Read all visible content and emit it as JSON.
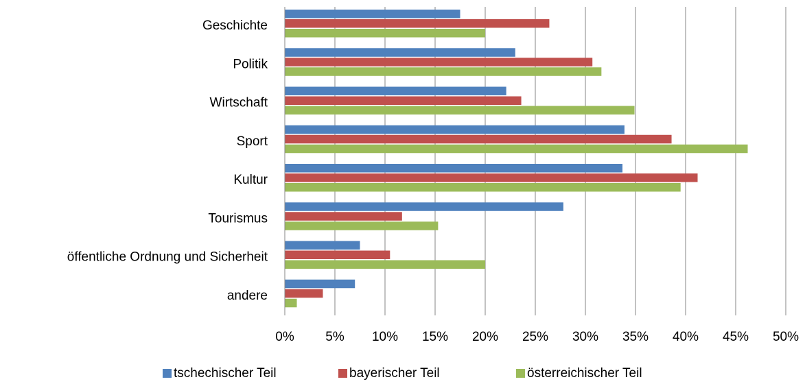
{
  "chart_data": {
    "type": "barh",
    "categories": [
      "Geschichte",
      "Politik",
      "Wirtschaft",
      "Sport",
      "Kultur",
      "Tourismus",
      "öffentliche Ordnung und Sicherheit",
      "andere"
    ],
    "series": [
      {
        "name": "tschechischer Teil",
        "color": "#4f81bd",
        "values": [
          17.5,
          23,
          22.1,
          33.9,
          33.7,
          27.8,
          7.5,
          7
        ]
      },
      {
        "name": "bayerischer Teil",
        "color": "#c0504d",
        "values": [
          26.4,
          30.7,
          23.6,
          38.6,
          41.2,
          11.7,
          10.5,
          3.8
        ]
      },
      {
        "name": "österreichischer Teil",
        "color": "#9bbb59",
        "values": [
          20,
          31.6,
          34.9,
          46.2,
          39.5,
          15.3,
          20,
          1.2
        ]
      }
    ],
    "xlim": [
      0,
      50
    ],
    "xticks": [
      {
        "value": 0,
        "label": "0%"
      },
      {
        "value": 5,
        "label": "5%"
      },
      {
        "value": 10,
        "label": "10%"
      },
      {
        "value": 15,
        "label": "15%"
      },
      {
        "value": 20,
        "label": "20%"
      },
      {
        "value": 25,
        "label": "25%"
      },
      {
        "value": 30,
        "label": "30%"
      },
      {
        "value": 35,
        "label": "35%"
      },
      {
        "value": 40,
        "label": "40%"
      },
      {
        "value": 45,
        "label": "45%"
      },
      {
        "value": 50,
        "label": "50%"
      }
    ],
    "grid": true,
    "legend": "bottom"
  }
}
